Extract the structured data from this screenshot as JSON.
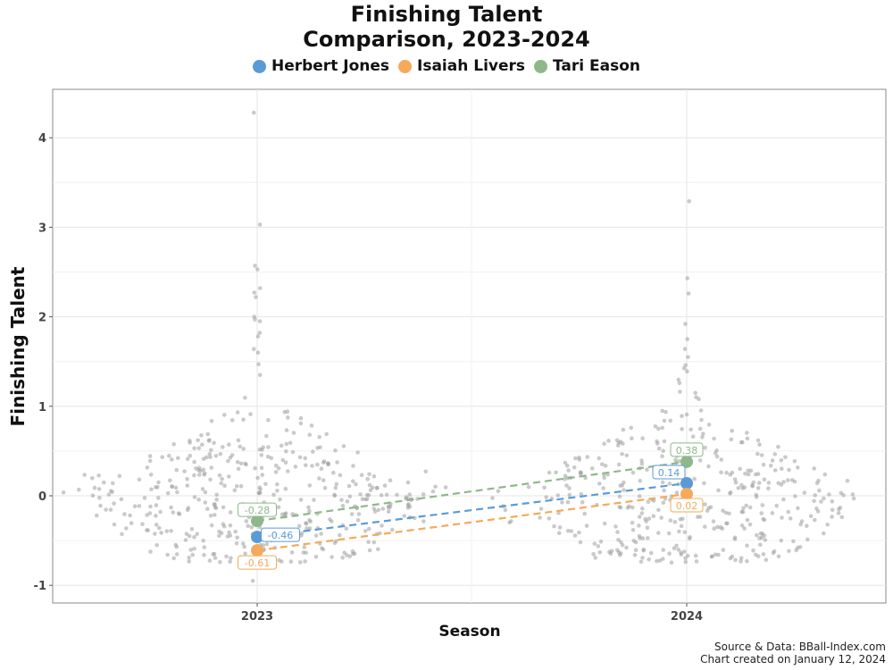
{
  "chart_data": {
    "type": "scatter",
    "title_line1": "Finishing Talent",
    "title_line2": "Comparison, 2023-2024",
    "xlabel": "Season",
    "ylabel": "Finishing Talent",
    "categories": [
      "2023",
      "2024"
    ],
    "ylim": [
      -1.2,
      4.55
    ],
    "yticks": [
      -1,
      0,
      1,
      2,
      3,
      4
    ],
    "ytick_labels": [
      "-1",
      "0",
      "1",
      "2",
      "3",
      "4"
    ],
    "grid": true,
    "legend_position": "top-center",
    "series": [
      {
        "name": "Herbert Jones",
        "color": "#5b9bd5",
        "values": [
          -0.46,
          0.14
        ],
        "labels": [
          "-0.46",
          "0.14"
        ]
      },
      {
        "name": "Isaiah Livers",
        "color": "#f5a95a",
        "values": [
          -0.61,
          0.02
        ],
        "labels": [
          "-0.61",
          "0.02"
        ]
      },
      {
        "name": "Tari Eason",
        "color": "#8fb88a",
        "values": [
          -0.28,
          0.38
        ],
        "labels": [
          "-0.28",
          "0.38"
        ]
      }
    ],
    "background_distribution_color": "#9e9e9e"
  },
  "caption": {
    "line1": "Source & Data: BBall-Index.com",
    "line2": "Chart created on January 12, 2024"
  }
}
